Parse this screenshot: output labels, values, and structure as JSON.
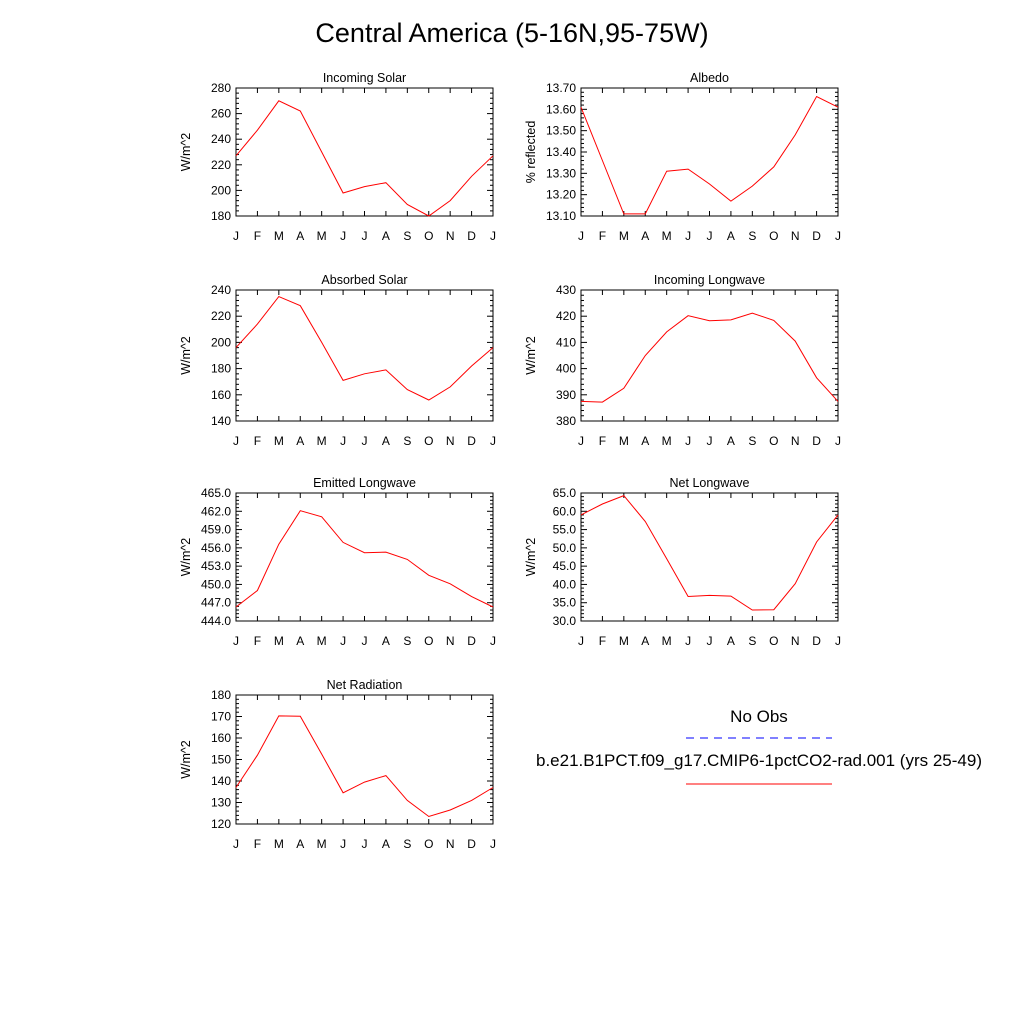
{
  "title": "Central America (5-16N,95-75W)",
  "colors": {
    "model": "#ff0000",
    "obs": "#0000ff"
  },
  "legend": {
    "obs_label": "No Obs",
    "model_label": "b.e21.B1PCT.f09_g17.CMIP6-1pctCO2-rad.001 (yrs 25-49)"
  },
  "chart_data": [
    {
      "type": "line",
      "title": "Incoming Solar",
      "ylabel": "W/m^2",
      "x": [
        "J",
        "F",
        "M",
        "A",
        "M",
        "J",
        "J",
        "A",
        "S",
        "O",
        "N",
        "D",
        "J"
      ],
      "ylim": [
        180,
        280
      ],
      "yticks": [
        "180",
        "200",
        "220",
        "240",
        "260",
        "280"
      ],
      "series": [
        {
          "values": [
            227,
            247,
            270,
            262,
            230,
            198,
            203,
            206,
            189,
            180,
            192,
            211,
            227
          ]
        }
      ]
    },
    {
      "type": "line",
      "title": "Albedo",
      "ylabel": "% reflected",
      "x": [
        "J",
        "F",
        "M",
        "A",
        "M",
        "J",
        "J",
        "A",
        "S",
        "O",
        "N",
        "D",
        "J"
      ],
      "ylim": [
        13.1,
        13.7
      ],
      "yticks": [
        "13.10",
        "13.20",
        "13.30",
        "13.40",
        "13.50",
        "13.60",
        "13.70"
      ],
      "series": [
        {
          "values": [
            13.61,
            13.36,
            13.11,
            13.11,
            13.31,
            13.32,
            13.25,
            13.17,
            13.24,
            13.33,
            13.48,
            13.66,
            13.61
          ]
        }
      ]
    },
    {
      "type": "line",
      "title": "Absorbed Solar",
      "ylabel": "W/m^2",
      "x": [
        "J",
        "F",
        "M",
        "A",
        "M",
        "J",
        "J",
        "A",
        "S",
        "O",
        "N",
        "D",
        "J"
      ],
      "ylim": [
        140,
        240
      ],
      "yticks": [
        "140",
        "160",
        "180",
        "200",
        "220",
        "240"
      ],
      "series": [
        {
          "values": [
            196,
            214,
            235,
            228,
            200,
            171,
            176,
            179,
            164,
            156,
            166,
            182,
            196
          ]
        }
      ]
    },
    {
      "type": "line",
      "title": "Incoming Longwave",
      "ylabel": "W/m^2",
      "x": [
        "J",
        "F",
        "M",
        "A",
        "M",
        "J",
        "J",
        "A",
        "S",
        "O",
        "N",
        "D",
        "J"
      ],
      "ylim": [
        380,
        430
      ],
      "yticks": [
        "380",
        "390",
        "400",
        "410",
        "420",
        "430"
      ],
      "series": [
        {
          "values": [
            387.5,
            387.2,
            392.5,
            405,
            414,
            420.2,
            418.3,
            418.6,
            421.2,
            418.4,
            410.5,
            396.5,
            387.5
          ]
        }
      ]
    },
    {
      "type": "line",
      "title": "Emitted Longwave",
      "ylabel": "W/m^2",
      "x": [
        "J",
        "F",
        "M",
        "A",
        "M",
        "J",
        "J",
        "A",
        "S",
        "O",
        "N",
        "D",
        "J"
      ],
      "ylim": [
        444.0,
        465.0
      ],
      "yticks": [
        "444.0",
        "447.0",
        "450.0",
        "453.0",
        "456.0",
        "459.0",
        "462.0",
        "465.0"
      ],
      "series": [
        {
          "values": [
            446.3,
            449.0,
            456.6,
            462.1,
            461.1,
            456.9,
            455.2,
            455.3,
            454.1,
            451.5,
            450.1,
            448.0,
            446.3
          ]
        }
      ]
    },
    {
      "type": "line",
      "title": "Net Longwave",
      "ylabel": "W/m^2",
      "x": [
        "J",
        "F",
        "M",
        "A",
        "M",
        "J",
        "J",
        "A",
        "S",
        "O",
        "N",
        "D",
        "J"
      ],
      "ylim": [
        30.0,
        65.0
      ],
      "yticks": [
        "30.0",
        "35.0",
        "40.0",
        "45.0",
        "50.0",
        "55.0",
        "60.0",
        "65.0"
      ],
      "series": [
        {
          "values": [
            59.0,
            62.0,
            64.3,
            57.2,
            47.0,
            36.7,
            37.0,
            36.8,
            33.0,
            33.1,
            40.2,
            51.6,
            59.0
          ]
        }
      ]
    },
    {
      "type": "line",
      "title": "Net Radiation",
      "ylabel": "W/m^2",
      "x": [
        "J",
        "F",
        "M",
        "A",
        "M",
        "J",
        "J",
        "A",
        "S",
        "O",
        "N",
        "D",
        "J"
      ],
      "ylim": [
        120,
        180
      ],
      "yticks": [
        "120",
        "130",
        "140",
        "150",
        "160",
        "170",
        "180"
      ],
      "series": [
        {
          "values": [
            137,
            152,
            170.3,
            170.1,
            152.5,
            134.5,
            139.5,
            142.5,
            131,
            123.5,
            126.5,
            131,
            137
          ]
        }
      ]
    }
  ]
}
